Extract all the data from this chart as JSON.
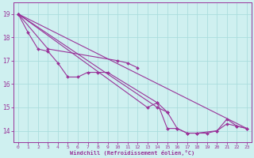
{
  "background_color": "#cff0f0",
  "grid_color": "#aadddd",
  "line_color": "#993399",
  "marker_color": "#993399",
  "xlabel": "Windchill (Refroidissement éolien,°C)",
  "xlabel_color": "#993399",
  "tick_color": "#993399",
  "ylim": [
    13.5,
    19.5
  ],
  "xlim": [
    -0.5,
    23.5
  ],
  "yticks": [
    14,
    15,
    16,
    17,
    18,
    19
  ],
  "xticks": [
    0,
    1,
    2,
    3,
    4,
    5,
    6,
    7,
    8,
    9,
    10,
    11,
    12,
    13,
    14,
    15,
    16,
    17,
    18,
    19,
    20,
    21,
    22,
    23
  ],
  "series": [
    {
      "x": [
        0,
        1,
        2,
        3,
        4,
        5,
        6,
        7,
        8,
        9,
        14,
        15,
        16,
        17,
        18,
        20,
        21,
        22,
        23
      ],
      "y": [
        19.0,
        18.2,
        17.5,
        17.4,
        16.9,
        16.3,
        16.3,
        16.5,
        16.5,
        16.5,
        15.2,
        14.1,
        14.1,
        13.9,
        13.9,
        14.0,
        14.5,
        14.2,
        14.1
      ]
    },
    {
      "x": [
        0,
        3,
        10,
        11,
        12
      ],
      "y": [
        19.0,
        17.5,
        17.0,
        16.9,
        16.7
      ]
    },
    {
      "x": [
        0,
        13,
        14,
        15
      ],
      "y": [
        19.0,
        15.0,
        15.2,
        14.8
      ]
    },
    {
      "x": [
        0,
        14,
        15,
        16,
        17,
        18,
        19,
        20,
        21,
        22,
        23
      ],
      "y": [
        19.0,
        15.0,
        14.8,
        14.1,
        13.9,
        13.9,
        13.9,
        14.0,
        14.3,
        14.2,
        14.1
      ]
    }
  ],
  "diagonal": {
    "x": [
      0,
      23
    ],
    "y": [
      19.0,
      14.1
    ]
  }
}
